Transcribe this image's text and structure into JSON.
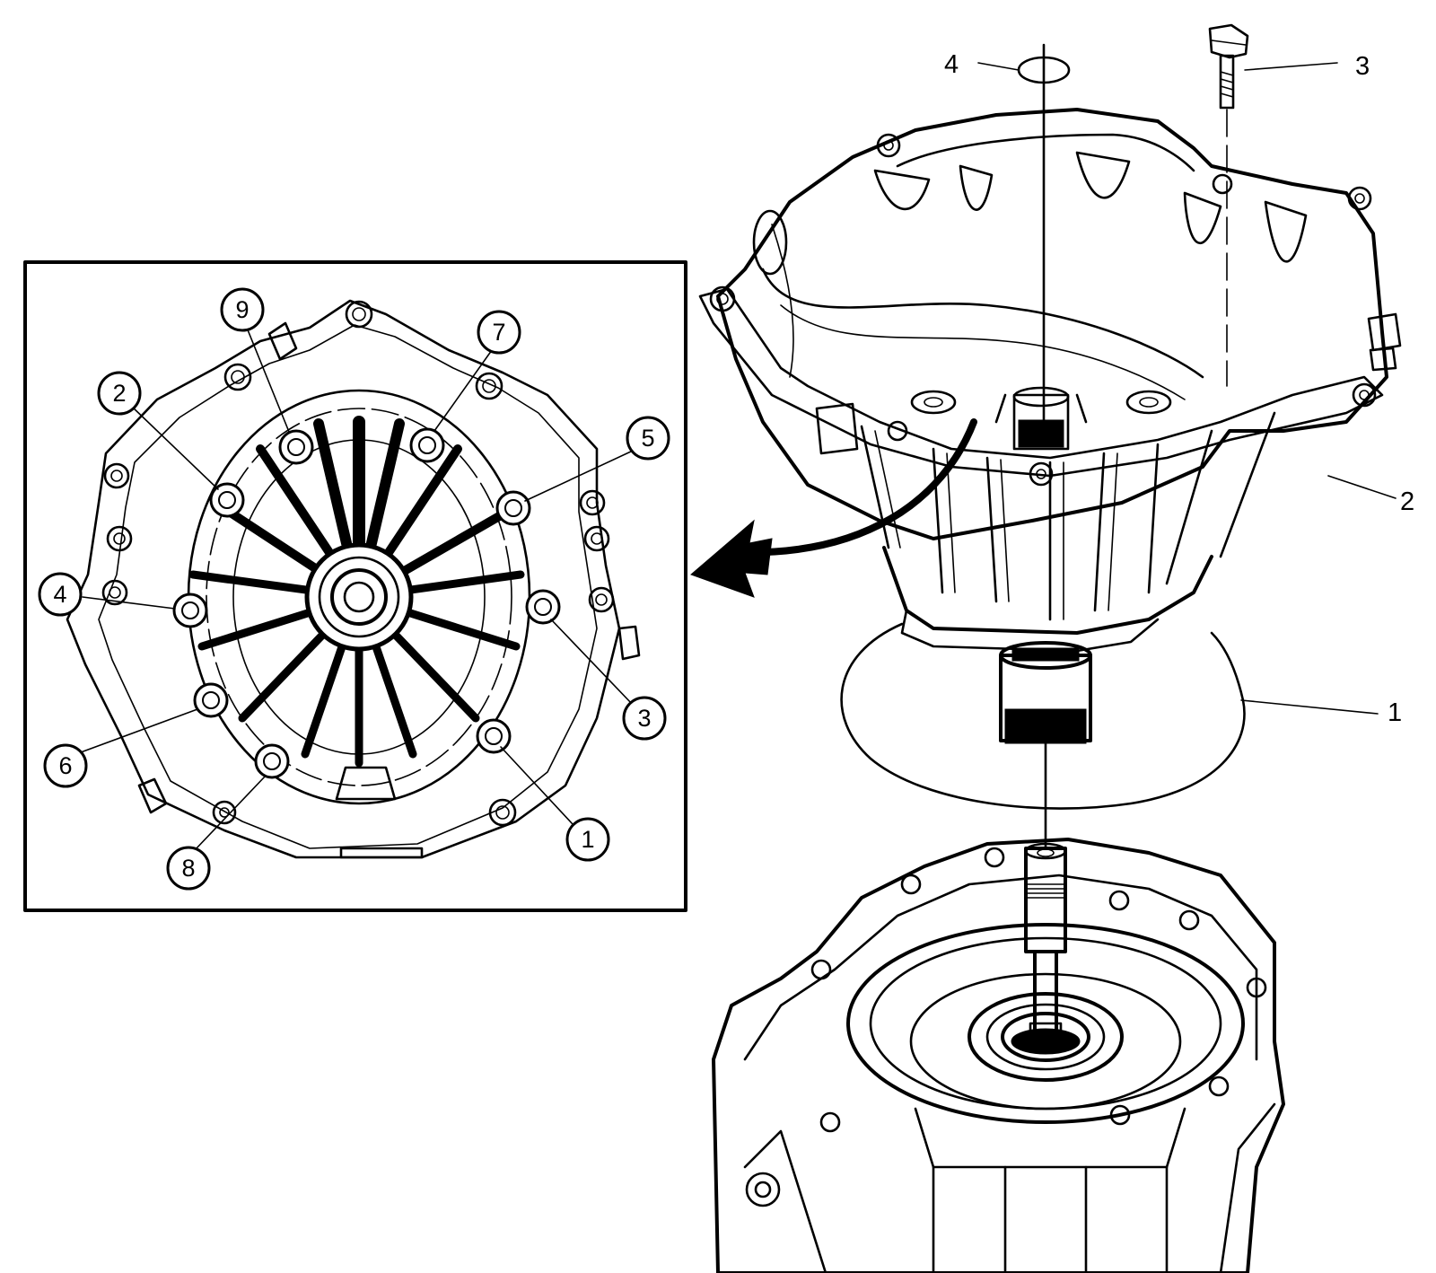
{
  "inset": {
    "bolt_sequence": [
      "1",
      "2",
      "3",
      "4",
      "5",
      "6",
      "7",
      "8",
      "9"
    ]
  },
  "callouts": {
    "c1": "1",
    "c2": "2",
    "c3": "3",
    "c4": "4"
  },
  "colors": {
    "line": "#000000",
    "background": "#ffffff"
  }
}
